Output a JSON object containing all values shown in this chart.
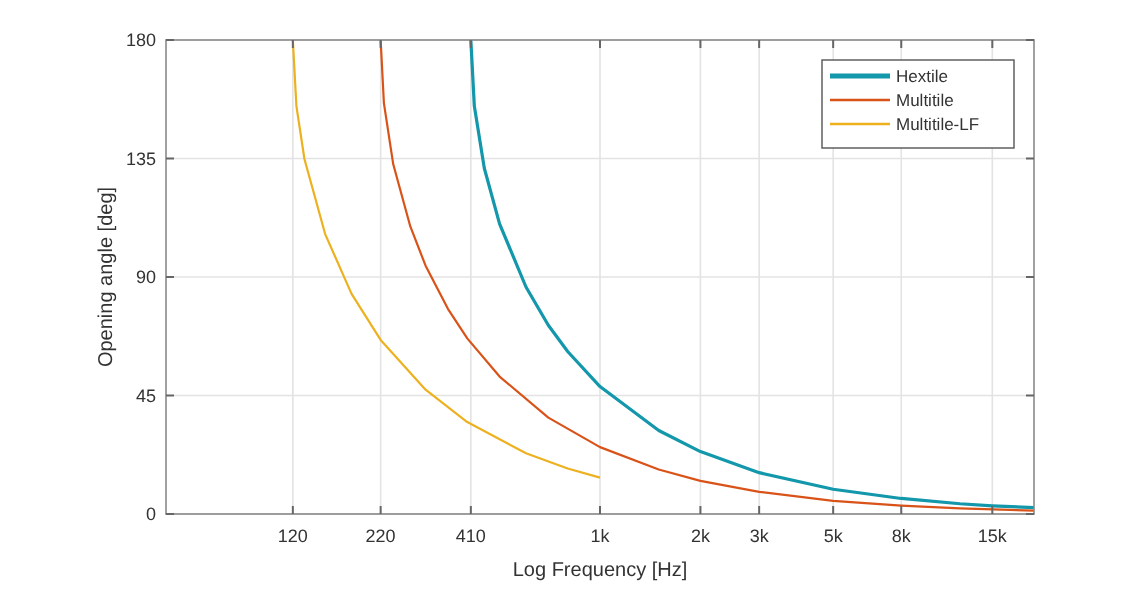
{
  "chart_data": {
    "type": "line",
    "xlabel": "Log Frequency [Hz]",
    "ylabel": "Opening angle [deg]",
    "log": "x",
    "grid": true,
    "legend": "top right",
    "line_style": "solid",
    "marker": "none",
    "xlim": [
      50,
      20000
    ],
    "xticks": [
      120,
      220,
      410,
      {
        "value": 1000,
        "label": "1k"
      },
      {
        "value": 2000,
        "label": "2k"
      },
      {
        "value": 3000,
        "label": "3k"
      },
      {
        "value": 5000,
        "label": "5k"
      },
      {
        "value": 8000,
        "label": "8k"
      },
      {
        "value": 15000,
        "label": "15k"
      }
    ],
    "ylim": [
      0,
      180
    ],
    "yticks": [
      0,
      45,
      90,
      135,
      180
    ],
    "series": [
      {
        "name": "Hextile",
        "color": "#1297ab",
        "x": [
          410,
          420,
          450,
          500,
          600,
          700,
          800,
          1000,
          1500,
          2000,
          3000,
          5000,
          8000,
          12000,
          15000,
          20000
        ],
        "values": [
          180,
          154.9,
          131.3,
          110.2,
          86.2,
          71.7,
          61.7,
          48.4,
          31.7,
          23.7,
          15.7,
          9.4,
          5.9,
          3.9,
          3.1,
          2.4
        ]
      },
      {
        "name": "Multitile",
        "color": "#d95319",
        "x": [
          220,
          225,
          240,
          270,
          300,
          350,
          400,
          500,
          700,
          1000,
          1500,
          2000,
          3000,
          5000,
          8000,
          12000,
          20000
        ],
        "values": [
          180,
          156,
          132.8,
          109.2,
          94.3,
          77.9,
          66.7,
          52.2,
          36.6,
          25.4,
          16.9,
          12.6,
          8.4,
          5,
          3.2,
          2.1,
          1.3
        ]
      },
      {
        "name": "Multitile-LF",
        "color": "#edb120",
        "x": [
          120,
          123,
          130,
          150,
          180,
          220,
          300,
          400,
          600,
          800,
          1000
        ],
        "values": [
          180,
          154.9,
          134.8,
          106.3,
          83.6,
          66.1,
          47.2,
          34.9,
          23.1,
          17.3,
          13.8
        ]
      }
    ]
  }
}
